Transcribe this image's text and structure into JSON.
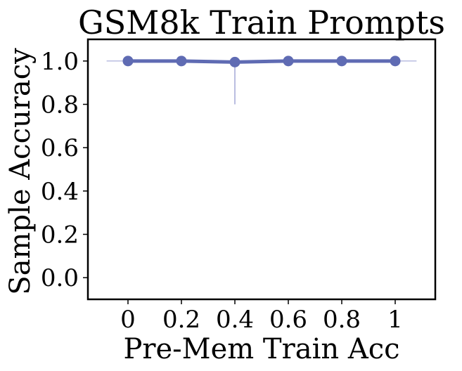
{
  "chart_data": {
    "type": "line",
    "title": "GSM8k Train Prompts",
    "xlabel": "Pre-Mem Train Acc",
    "ylabel": "Sample Accuracy",
    "xlim": [
      -0.15,
      1.15
    ],
    "ylim": [
      -0.1,
      1.1
    ],
    "x_ticks": [
      0,
      0.2,
      0.4,
      0.6,
      0.8,
      1
    ],
    "x_tick_labels": [
      "0",
      "0.2",
      "0.4",
      "0.6",
      "0.8",
      "1"
    ],
    "y_ticks": [
      0.0,
      0.2,
      0.4,
      0.6,
      0.8,
      1.0
    ],
    "y_tick_labels": [
      "0.0",
      "0.2",
      "0.4",
      "0.6",
      "0.8",
      "1.0"
    ],
    "grid": false,
    "series": [
      {
        "color": "#5f6bb3",
        "x": [
          0,
          0.2,
          0.4,
          0.6,
          0.8,
          1
        ],
        "y": [
          1.0,
          1.0,
          0.995,
          1.0,
          1.0,
          1.0
        ],
        "error_low": [
          1.0,
          1.0,
          0.8,
          1.0,
          1.0,
          1.0
        ],
        "error_high": [
          1.0,
          1.0,
          1.0,
          1.0,
          1.0,
          1.0
        ]
      }
    ],
    "reference_line": {
      "y": 1.0,
      "x_range": [
        -0.08,
        1.08
      ],
      "color": "#a3a9d6"
    }
  }
}
